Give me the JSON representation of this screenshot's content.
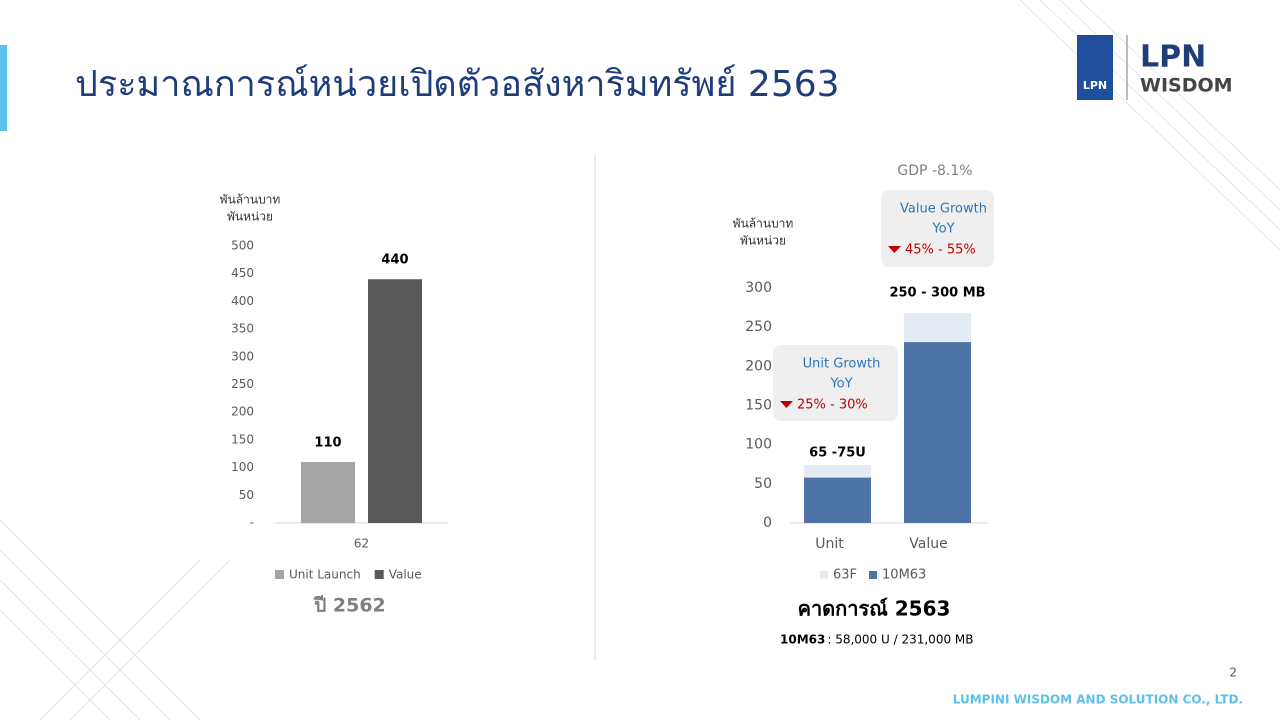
{
  "title": "ประมาณการณ์หน่วยเปิดตัวอสังหาริมทรัพย์ 2563",
  "logo": {
    "mark": "LPN",
    "name": "LPN",
    "subname": "WISDOM"
  },
  "page_number": "2",
  "footer": "LUMPINI WISDOM AND SOLUTION CO., LTD.",
  "chart_data": [
    {
      "type": "bar",
      "y_axis_label": [
        "พันล้านบาท",
        "พันหน่วย"
      ],
      "categories": [
        "62"
      ],
      "series": [
        {
          "name": "Unit Launch",
          "color": "#a5a5a5",
          "values": [
            110
          ]
        },
        {
          "name": "Value",
          "color": "#595959",
          "values": [
            440
          ]
        }
      ],
      "ylim": [
        0,
        500
      ],
      "yticks": [
        {
          "value": 0,
          "label": "-"
        },
        50,
        100,
        150,
        200,
        250,
        300,
        350,
        400,
        450,
        500
      ],
      "caption": "ปี 2562"
    },
    {
      "type": "stacked_bar",
      "annotation": "GDP -8.1%",
      "y_axis_label": [
        "พันล้านบาท",
        "พันหน่วย"
      ],
      "categories": [
        "Unit",
        "Value"
      ],
      "series": [
        {
          "name": "10M63",
          "color": "#4e74a6",
          "values": [
            58,
            231
          ]
        },
        {
          "name": "63F",
          "color": "#e4ebf4",
          "values": [
            16,
            37
          ]
        }
      ],
      "stack_labels": [
        "65 -75U",
        "250 - 300 MB"
      ],
      "ylim": [
        0,
        300
      ],
      "yticks": [
        0,
        50,
        100,
        150,
        200,
        250,
        300
      ],
      "callouts": [
        {
          "title": [
            "Unit Growth",
            "YoY"
          ],
          "text": "25% - 30%"
        },
        {
          "title": [
            "Value Growth",
            "YoY"
          ],
          "text": "45% - 55%"
        }
      ],
      "caption": "คาดการณ์ 2563",
      "note_label": "10M63",
      "note": ": 58,000 U / 231,000 MB"
    }
  ]
}
